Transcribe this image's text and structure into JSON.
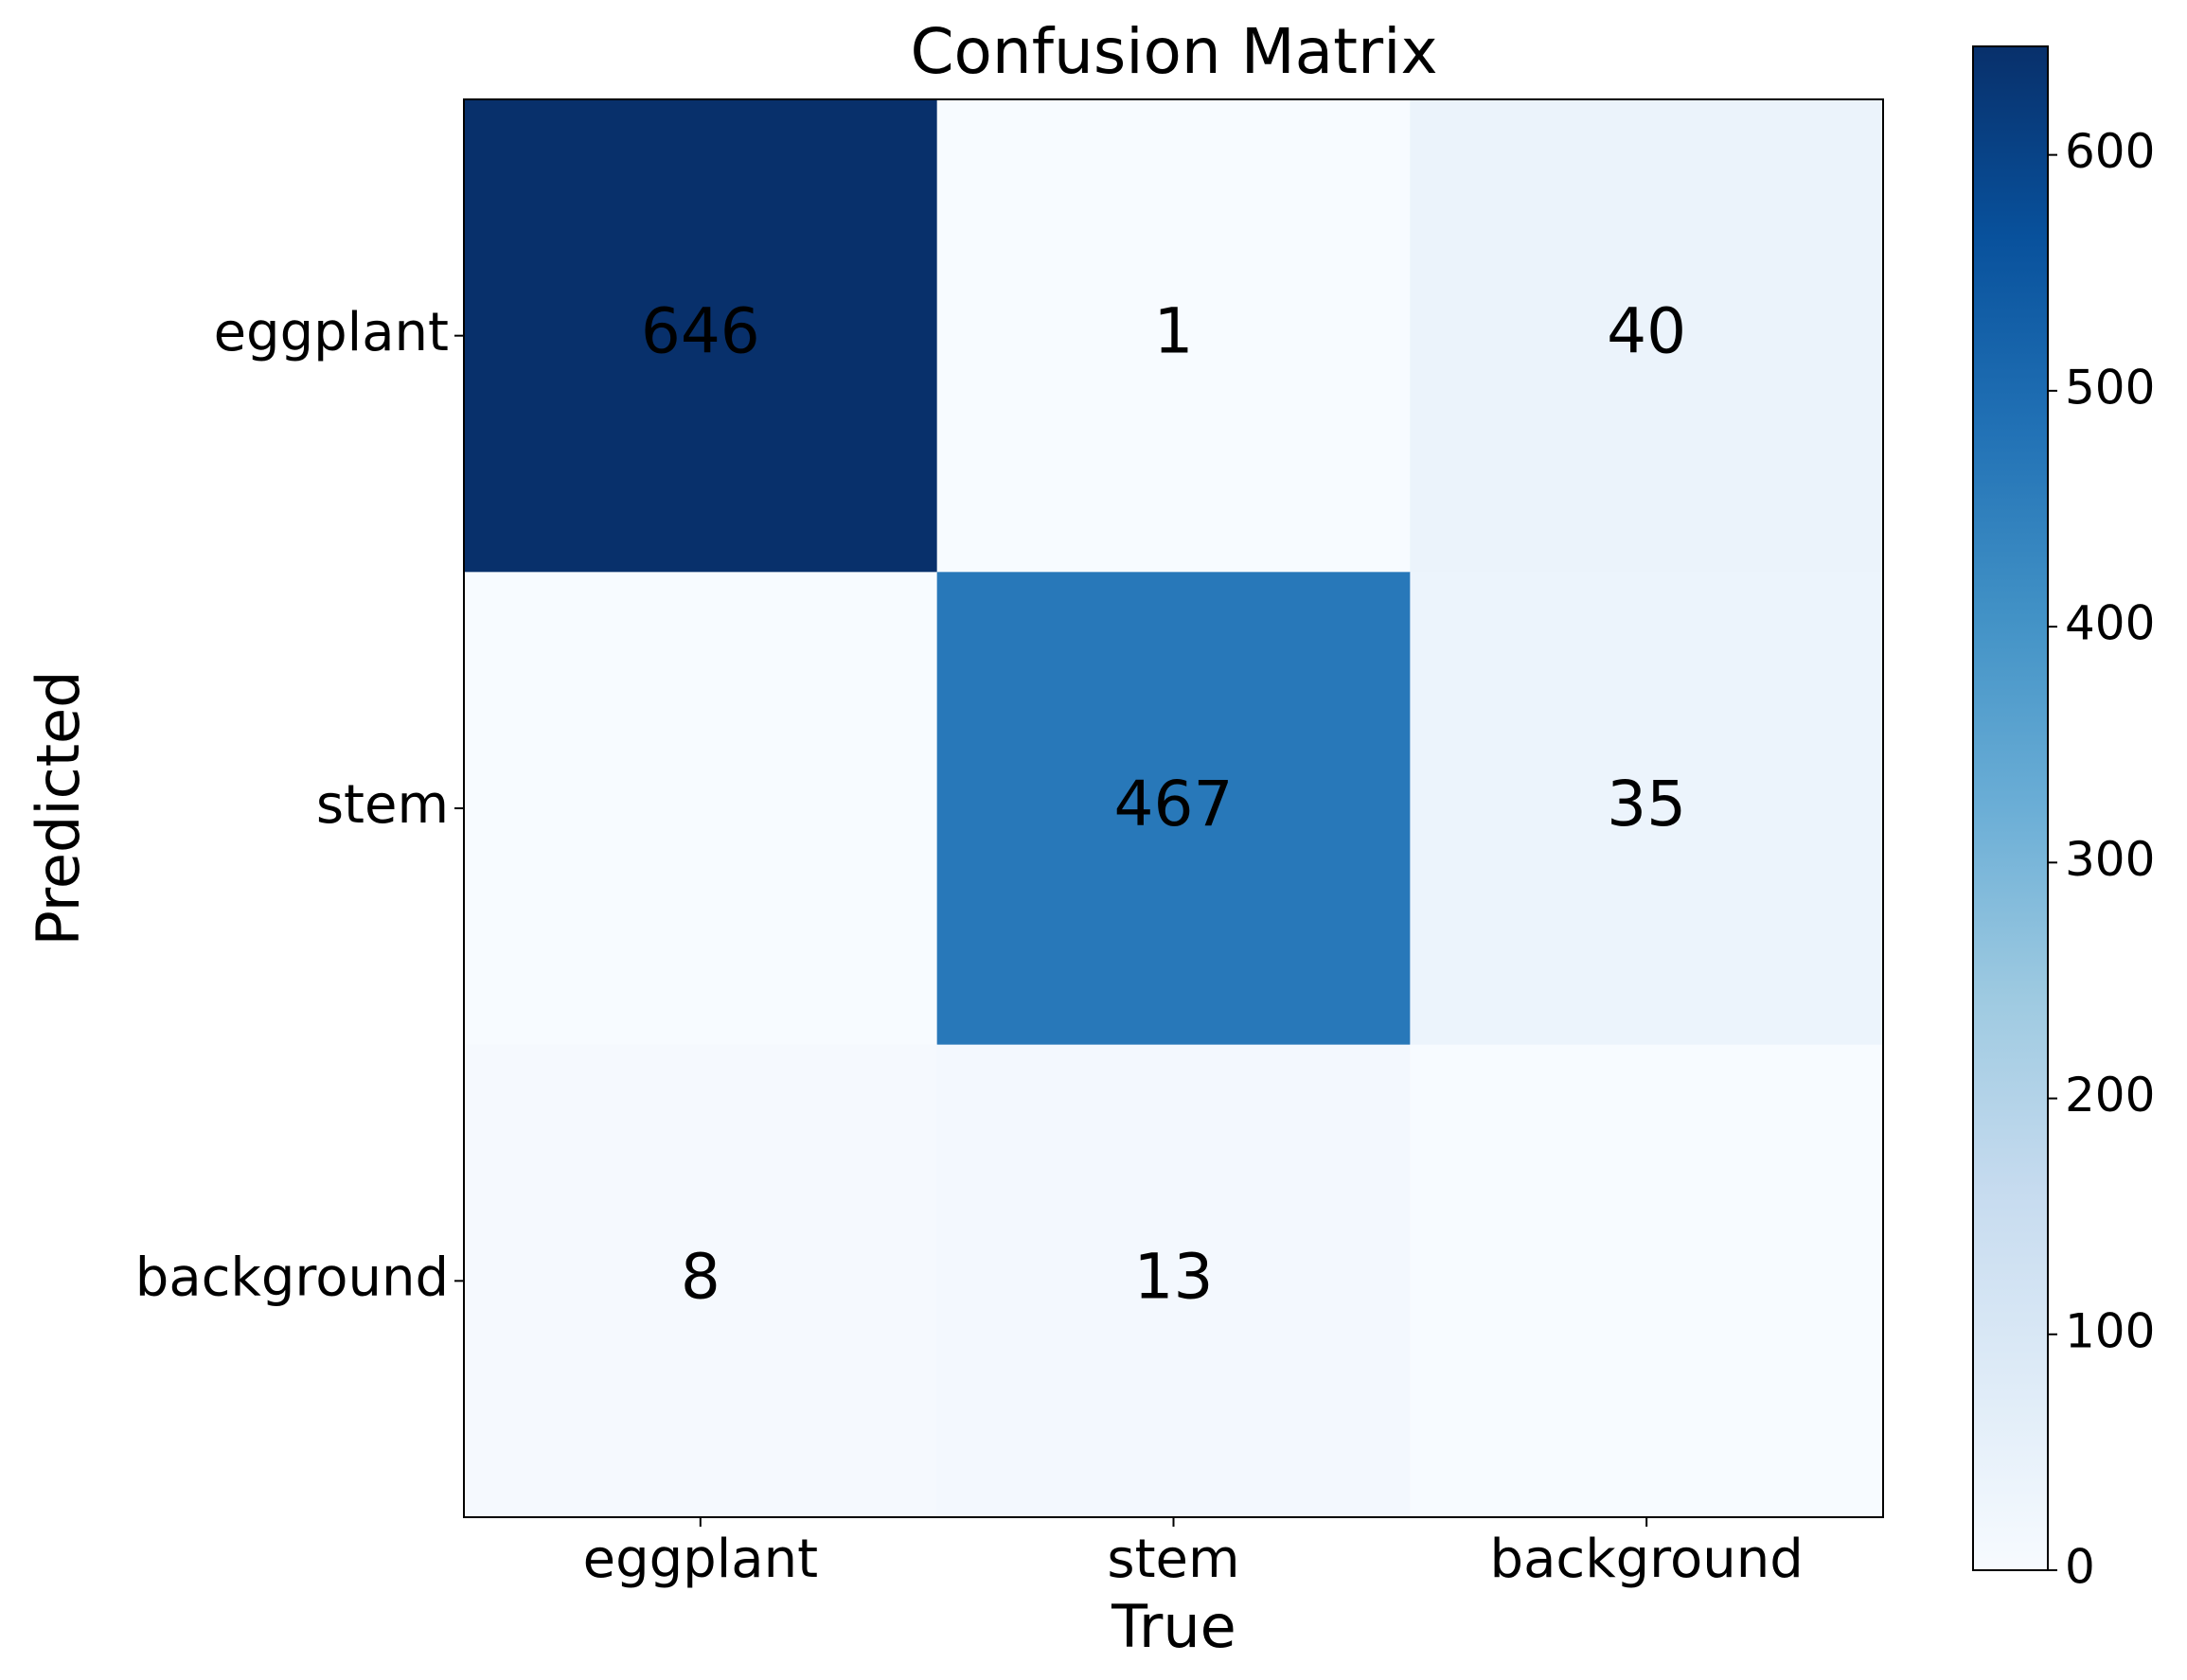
{
  "chart_data": {
    "type": "heatmap",
    "title": "Confusion Matrix",
    "x_label": "True",
    "y_label": "Predicted",
    "x_categories": [
      "eggplant",
      "stem",
      "background"
    ],
    "y_categories": [
      "eggplant",
      "stem",
      "background"
    ],
    "values": [
      [
        646,
        1,
        40
      ],
      [
        0,
        467,
        35
      ],
      [
        8,
        13,
        0
      ]
    ],
    "colormap": [
      "#f7fbff",
      "#deebf7",
      "#c6dbef",
      "#9ecae1",
      "#6baed6",
      "#4292c6",
      "#2171b5",
      "#08519c",
      "#08306b"
    ],
    "colorbar": {
      "ylim": [
        0,
        646
      ],
      "yticks": [
        0,
        100,
        200,
        300,
        400,
        500,
        600
      ]
    }
  }
}
